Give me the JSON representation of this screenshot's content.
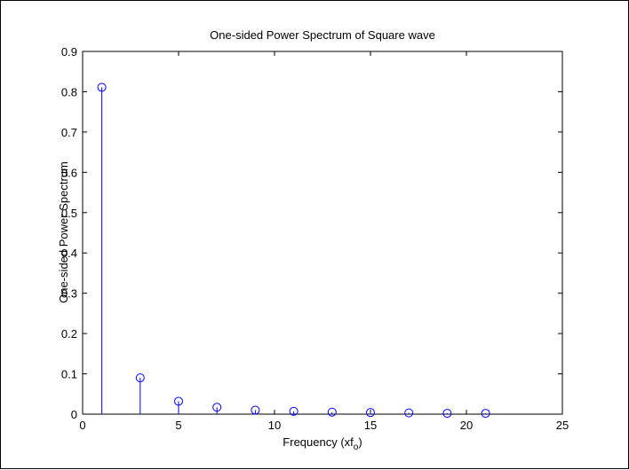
{
  "chart_data": {
    "type": "stem",
    "title": "One-sided Power Spectrum of Square wave",
    "xlabel": {
      "main": "Frequency  (xf",
      "subscript": "o",
      "close": ")"
    },
    "ylabel": "One-sided Power Spectrum",
    "xlim": [
      0,
      25
    ],
    "ylim": [
      0,
      0.9
    ],
    "xticks": [
      0,
      5,
      10,
      15,
      20,
      25
    ],
    "yticks": [
      0,
      0.1,
      0.2,
      0.3,
      0.4,
      0.5,
      0.6,
      0.7,
      0.8,
      0.9
    ],
    "xtick_labels": [
      "0",
      "5",
      "10",
      "15",
      "20",
      "25"
    ],
    "ytick_labels": [
      "0",
      "0.1",
      "0.2",
      "0.3",
      "0.4",
      "0.5",
      "0.6",
      "0.7",
      "0.8",
      "0.9"
    ],
    "grid": false,
    "marker": "circle",
    "color": "#0000ff",
    "series": [
      {
        "x": [
          1,
          3,
          5,
          7,
          9,
          11,
          13,
          15,
          17,
          19,
          21
        ],
        "y": [
          0.811,
          0.09,
          0.032,
          0.017,
          0.01,
          0.007,
          0.005,
          0.004,
          0.003,
          0.002,
          0.002
        ]
      }
    ]
  }
}
